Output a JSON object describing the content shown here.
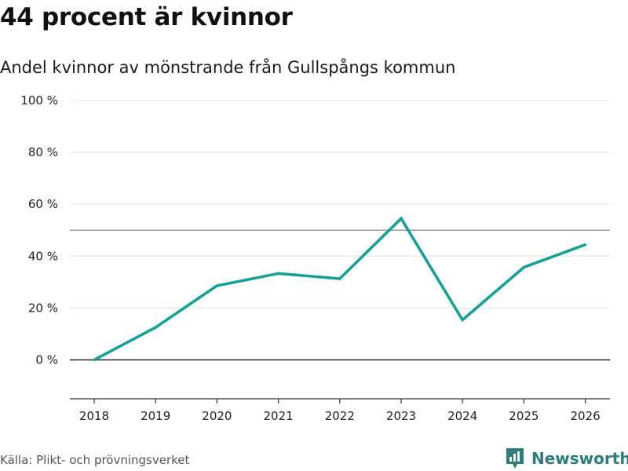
{
  "title": "44 procent är kvinnor",
  "subtitle": "Andel kvinnor av mönstrande från Gullspångs kommun",
  "source": "Källa: Plikt- och prövningsverket",
  "brand": {
    "name": "Newsworthy",
    "icon": "bar-chart-logo-icon",
    "color": "#2e7d7a"
  },
  "colors": {
    "line": "#17a196",
    "grid": "#e3e3e3",
    "zero": "#333333",
    "reference": "#888888"
  },
  "chart_data": {
    "type": "line",
    "title": "44 procent är kvinnor",
    "subtitle": "Andel kvinnor av mönstrande från Gullspångs kommun",
    "xlabel": "",
    "ylabel": "",
    "x": [
      "2018",
      "2019",
      "2020",
      "2021",
      "2022",
      "2023",
      "2024",
      "2025",
      "2026"
    ],
    "series": [
      {
        "name": "Andel kvinnor",
        "values": [
          0,
          12.5,
          28.6,
          33.3,
          31.3,
          54.5,
          15.4,
          35.7,
          44.4
        ]
      }
    ],
    "ylim": [
      -15,
      100
    ],
    "yticks": [
      0,
      20,
      40,
      60,
      80,
      100
    ],
    "ytick_labels": [
      "0 %",
      "20 %",
      "40 %",
      "60 %",
      "80 %",
      "100 %"
    ],
    "reference_line": 50,
    "grid": true
  }
}
